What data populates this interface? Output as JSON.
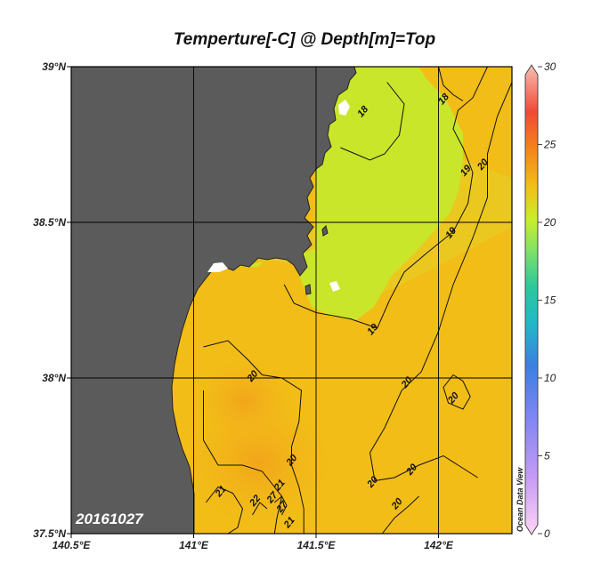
{
  "chart_data": {
    "type": "heatmap",
    "title": "Temperture[-C] @ Depth[m]=Top",
    "date_label": "20161027",
    "credit": "Ocean Data View",
    "x_axis": {
      "range": [
        140.5,
        142.3
      ],
      "ticks": [
        140.5,
        141.0,
        141.5,
        142.0
      ],
      "tick_labels": [
        "140.5°E",
        "141°E",
        "141.5°E",
        "142°E"
      ]
    },
    "y_axis": {
      "range": [
        37.5,
        39.0
      ],
      "ticks": [
        37.5,
        38.0,
        38.5,
        39.0
      ],
      "tick_labels": [
        "37.5°N",
        "38°N",
        "38.5°N",
        "39°N"
      ]
    },
    "grid": true,
    "colorbar": {
      "range": [
        0,
        30
      ],
      "ticks": [
        0,
        5,
        10,
        15,
        20,
        25,
        30
      ],
      "tick_labels": [
        "0",
        "5",
        "10",
        "15",
        "20",
        "25",
        "30"
      ]
    },
    "contour_labels": [
      {
        "value": "18",
        "lon": 141.7,
        "lat": 38.85
      },
      {
        "value": "18",
        "lon": 142.03,
        "lat": 38.89
      },
      {
        "value": "19",
        "lon": 142.12,
        "lat": 38.66
      },
      {
        "value": "20",
        "lon": 142.19,
        "lat": 38.68
      },
      {
        "value": "19",
        "lon": 142.06,
        "lat": 38.46
      },
      {
        "value": "19",
        "lon": 141.74,
        "lat": 38.15
      },
      {
        "value": "20",
        "lon": 141.25,
        "lat": 38.0
      },
      {
        "value": "20",
        "lon": 141.88,
        "lat": 37.98
      },
      {
        "value": "20",
        "lon": 142.07,
        "lat": 37.93
      },
      {
        "value": "20",
        "lon": 141.41,
        "lat": 37.73
      },
      {
        "value": "20",
        "lon": 141.74,
        "lat": 37.66
      },
      {
        "value": "20",
        "lon": 141.9,
        "lat": 37.7
      },
      {
        "value": "20",
        "lon": 141.84,
        "lat": 37.59
      },
      {
        "value": "21",
        "lon": 141.12,
        "lat": 37.63
      },
      {
        "value": "21",
        "lon": 141.36,
        "lat": 37.65
      },
      {
        "value": "22",
        "lon": 141.26,
        "lat": 37.6
      },
      {
        "value": "27",
        "lon": 141.33,
        "lat": 37.61
      },
      {
        "value": "27",
        "lon": 141.37,
        "lat": 37.58
      },
      {
        "value": "21",
        "lon": 141.4,
        "lat": 37.53
      }
    ],
    "contours": [
      {
        "value": 18,
        "points": [
          [
            141.79,
            38.95
          ],
          [
            141.86,
            38.88
          ],
          [
            141.84,
            38.78
          ],
          [
            141.78,
            38.72
          ],
          [
            141.72,
            38.7
          ],
          [
            141.66,
            38.72
          ],
          [
            141.6,
            38.74
          ]
        ]
      },
      {
        "value": 18,
        "points": [
          [
            142.0,
            39.0
          ],
          [
            142.02,
            38.94
          ],
          [
            142.06,
            38.91
          ],
          [
            142.1,
            38.89
          ]
        ]
      },
      {
        "value": 19,
        "points": [
          [
            142.2,
            39.0
          ],
          [
            142.14,
            38.9
          ],
          [
            142.08,
            38.86
          ],
          [
            142.06,
            38.8
          ],
          [
            142.1,
            38.74
          ],
          [
            142.14,
            38.66
          ],
          [
            142.12,
            38.56
          ],
          [
            142.06,
            38.47
          ],
          [
            141.95,
            38.4
          ],
          [
            141.86,
            38.34
          ],
          [
            141.8,
            38.25
          ],
          [
            141.75,
            38.16
          ],
          [
            141.64,
            38.19
          ],
          [
            141.5,
            38.21
          ],
          [
            141.41,
            38.24
          ],
          [
            141.37,
            38.3
          ]
        ]
      },
      {
        "value": 20,
        "points": [
          [
            142.3,
            38.95
          ],
          [
            142.24,
            38.84
          ],
          [
            142.2,
            38.72
          ],
          [
            142.2,
            38.58
          ],
          [
            142.14,
            38.45
          ],
          [
            142.06,
            38.3
          ],
          [
            142.0,
            38.15
          ],
          [
            141.93,
            38.02
          ],
          [
            141.85,
            37.96
          ],
          [
            141.78,
            37.84
          ],
          [
            141.72,
            37.76
          ],
          [
            141.74,
            37.67
          ],
          [
            141.82,
            37.68
          ],
          [
            141.92,
            37.72
          ],
          [
            142.02,
            37.75
          ],
          [
            142.08,
            37.72
          ],
          [
            142.16,
            37.68
          ]
        ]
      },
      {
        "value": 20,
        "points": [
          [
            142.06,
            38.01
          ],
          [
            142.02,
            37.97
          ],
          [
            142.04,
            37.92
          ],
          [
            142.1,
            37.9
          ],
          [
            142.13,
            37.94
          ],
          [
            142.1,
            37.99
          ],
          [
            142.06,
            38.01
          ]
        ]
      },
      {
        "value": 20,
        "points": [
          [
            141.77,
            37.5
          ],
          [
            141.82,
            37.55
          ],
          [
            141.88,
            37.59
          ],
          [
            141.92,
            37.62
          ]
        ]
      },
      {
        "value": 20,
        "points": [
          [
            141.04,
            38.1
          ],
          [
            141.14,
            38.12
          ],
          [
            141.22,
            38.06
          ],
          [
            141.28,
            38.01
          ],
          [
            141.36,
            38.0
          ],
          [
            141.44,
            37.96
          ],
          [
            141.43,
            37.86
          ],
          [
            141.4,
            37.78
          ],
          [
            141.4,
            37.72
          ],
          [
            141.43,
            37.65
          ],
          [
            141.45,
            37.58
          ],
          [
            141.45,
            37.5
          ]
        ]
      },
      {
        "value": 21,
        "points": [
          [
            141.04,
            37.96
          ],
          [
            141.04,
            37.8
          ],
          [
            141.1,
            37.72
          ],
          [
            141.2,
            37.72
          ],
          [
            141.28,
            37.7
          ],
          [
            141.32,
            37.66
          ],
          [
            141.36,
            37.62
          ],
          [
            141.34,
            37.55
          ],
          [
            141.33,
            37.5
          ]
        ]
      },
      {
        "value": 21,
        "points": [
          [
            141.05,
            37.6
          ],
          [
            141.1,
            37.65
          ],
          [
            141.16,
            37.63
          ],
          [
            141.2,
            37.58
          ],
          [
            141.18,
            37.52
          ],
          [
            141.14,
            37.5
          ]
        ]
      },
      {
        "value": 22,
        "points": [
          [
            141.24,
            37.56
          ],
          [
            141.27,
            37.6
          ],
          [
            141.3,
            37.58
          ]
        ]
      },
      {
        "value": 27,
        "points": [
          [
            141.33,
            37.6
          ],
          [
            141.36,
            37.62
          ],
          [
            141.38,
            37.59
          ],
          [
            141.36,
            37.56
          ]
        ]
      }
    ]
  }
}
